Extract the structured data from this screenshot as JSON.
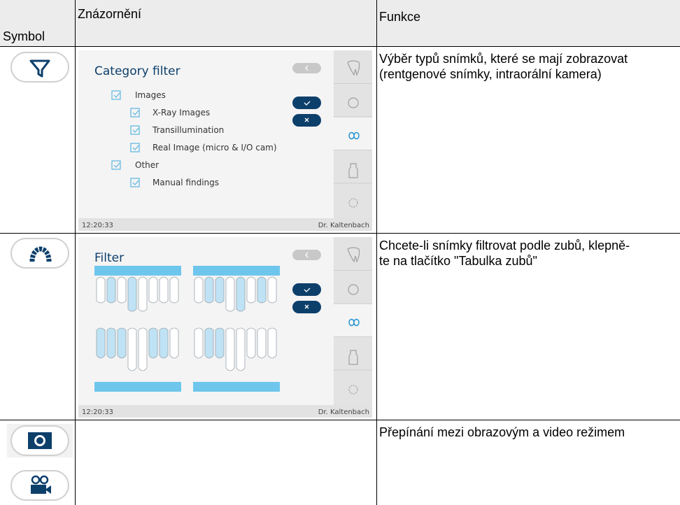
{
  "table": {
    "header": [
      "Symbol",
      "Znázornění",
      "Funkce"
    ],
    "rows": [
      {
        "screen": {
          "title": "Category filter",
          "items": [
            {
              "label": "Images",
              "children": [
                "X-Ray Images",
                "Transillumination",
                "Real Image (micro & I/O cam)"
              ]
            },
            {
              "label": "Other",
              "children": [
                "Manual findings"
              ]
            }
          ],
          "time": "12:20:33",
          "user": "Dr. Kaltenbach"
        },
        "function": [
          "Výběr typů snímků, které se mají zobrazovat",
          "(rentgenové snímky, intraorální kamera)"
        ]
      },
      {
        "screen": {
          "title": "Filter",
          "time": "12:20:33",
          "user": "Dr. Kaltenbach"
        },
        "function": [
          "Chcete-li snímky filtrovat podle zubů, klepně-",
          "te na tlačítko \"Tabulka zubů\""
        ]
      },
      {
        "function": [
          "Přepínání mezi obrazovým a video režimem"
        ]
      }
    ]
  }
}
